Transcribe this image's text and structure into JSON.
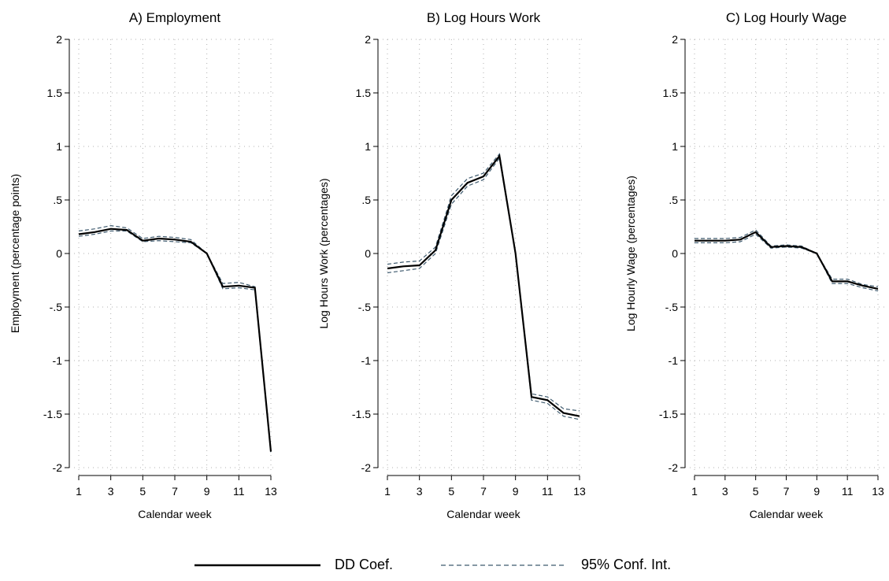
{
  "chart_data": [
    {
      "type": "line",
      "title": "A) Employment",
      "xlabel": "Calendar week",
      "ylabel": "Employment (percentage points)",
      "xlim": [
        1,
        13
      ],
      "ylim": [
        -2,
        2
      ],
      "xticks": [
        1,
        3,
        5,
        7,
        9,
        11,
        13
      ],
      "yticks": [
        2,
        1.5,
        1,
        0.5,
        0,
        -0.5,
        -1,
        -1.5,
        -2
      ],
      "ytick_labels": [
        "2",
        "1.5",
        "1",
        ".5",
        "0",
        "-.5",
        "-1",
        "-1.5",
        "-2"
      ],
      "grid": true,
      "x": [
        1,
        2,
        3,
        4,
        5,
        6,
        7,
        8,
        9,
        10,
        11,
        12,
        13
      ],
      "coef": [
        0.18,
        0.2,
        0.23,
        0.22,
        0.12,
        0.14,
        0.13,
        0.11,
        0.0,
        -0.31,
        -0.3,
        -0.32,
        -1.85
      ],
      "ci_upper": [
        0.21,
        0.23,
        0.26,
        0.24,
        0.14,
        0.16,
        0.15,
        0.13,
        0.0,
        -0.28,
        -0.27,
        -0.31,
        -1.84
      ],
      "ci_lower": [
        0.16,
        0.18,
        0.21,
        0.21,
        0.11,
        0.12,
        0.11,
        0.1,
        0.0,
        -0.33,
        -0.32,
        -0.34,
        -1.87
      ]
    },
    {
      "type": "line",
      "title": "B) Log Hours Work",
      "xlabel": "Calendar week",
      "ylabel": "Log Hours Work (percentages)",
      "xlim": [
        1,
        13
      ],
      "ylim": [
        -2,
        2
      ],
      "xticks": [
        1,
        3,
        5,
        7,
        9,
        11,
        13
      ],
      "yticks": [
        2,
        1.5,
        1,
        0.5,
        0,
        -0.5,
        -1,
        -1.5,
        -2
      ],
      "ytick_labels": [
        "2",
        "1.5",
        "1",
        ".5",
        "0",
        "-.5",
        "-1",
        "-1.5",
        "-2"
      ],
      "grid": true,
      "x": [
        1,
        2,
        3,
        4,
        5,
        6,
        7,
        8,
        9,
        10,
        11,
        12,
        13
      ],
      "coef": [
        -0.14,
        -0.12,
        -0.11,
        0.03,
        0.5,
        0.66,
        0.72,
        0.91,
        0.0,
        -1.34,
        -1.37,
        -1.49,
        -1.52
      ],
      "ci_upper": [
        -0.1,
        -0.08,
        -0.07,
        0.06,
        0.54,
        0.7,
        0.75,
        0.93,
        0.0,
        -1.31,
        -1.34,
        -1.45,
        -1.47
      ],
      "ci_lower": [
        -0.18,
        -0.16,
        -0.14,
        0.0,
        0.46,
        0.63,
        0.69,
        0.89,
        0.0,
        -1.37,
        -1.4,
        -1.52,
        -1.55
      ]
    },
    {
      "type": "line",
      "title": "C) Log Hourly Wage",
      "xlabel": "Calendar week",
      "ylabel": "Log Hourly Wage (percentages)",
      "xlim": [
        1,
        13
      ],
      "ylim": [
        -2,
        2
      ],
      "xticks": [
        1,
        3,
        5,
        7,
        9,
        11,
        13
      ],
      "yticks": [
        2,
        1.5,
        1,
        0.5,
        0,
        -0.5,
        -1,
        -1.5,
        -2
      ],
      "ytick_labels": [
        "2",
        "1.5",
        "1",
        ".5",
        "0",
        "-.5",
        "-1",
        "-1.5",
        "-2"
      ],
      "grid": true,
      "x": [
        1,
        2,
        3,
        4,
        5,
        6,
        7,
        8,
        9,
        10,
        11,
        12,
        13
      ],
      "coef": [
        0.12,
        0.12,
        0.12,
        0.13,
        0.2,
        0.06,
        0.07,
        0.06,
        0.0,
        -0.26,
        -0.26,
        -0.3,
        -0.33
      ],
      "ci_upper": [
        0.14,
        0.14,
        0.14,
        0.15,
        0.22,
        0.07,
        0.08,
        0.07,
        0.0,
        -0.24,
        -0.24,
        -0.29,
        -0.31
      ],
      "ci_lower": [
        0.1,
        0.1,
        0.1,
        0.11,
        0.18,
        0.05,
        0.06,
        0.05,
        0.0,
        -0.28,
        -0.28,
        -0.32,
        -0.35
      ]
    }
  ],
  "legend": {
    "items": [
      {
        "label": "DD Coef.",
        "color": "#000000",
        "style": "solid"
      },
      {
        "label": "95% Conf. Int.",
        "color": "#3e5a6e",
        "style": "dashed"
      }
    ]
  },
  "colors": {
    "coef": "#000000",
    "ci": "#3e5a6e",
    "grid": "#b0b0b0",
    "axis": "#000000"
  }
}
